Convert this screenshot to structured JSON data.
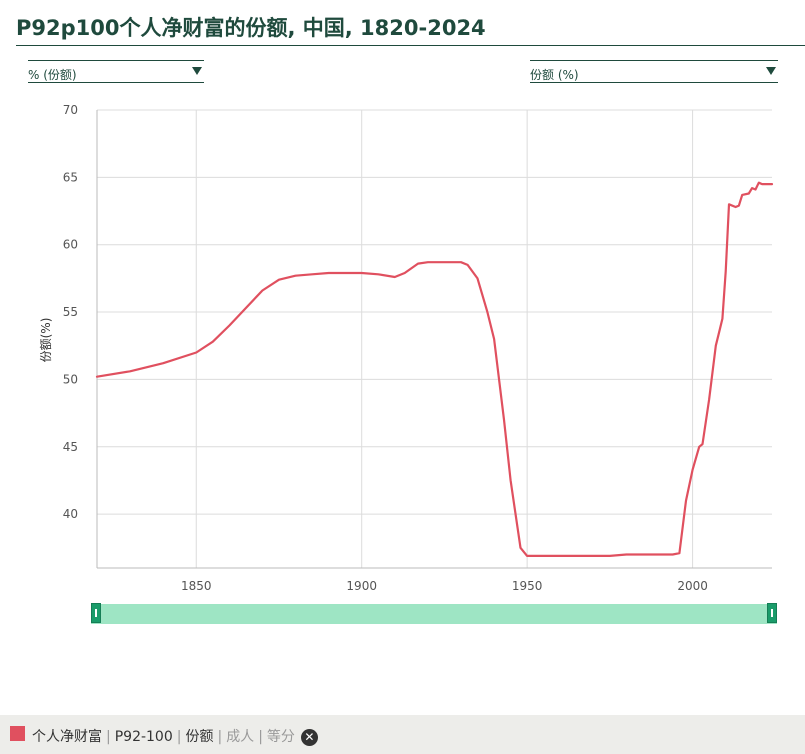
{
  "title": "P92p100个人净财富的份额, 中国, 1820-2024",
  "controls": {
    "left_select": "% (份额)",
    "right_select": "份额 (%)"
  },
  "chart_data": {
    "type": "line",
    "title": "P92p100个人净财富的份额, 中国, 1820-2024",
    "xlabel": "",
    "ylabel": "份额(%)",
    "xlim": [
      1820,
      2024
    ],
    "ylim": [
      36,
      70
    ],
    "xticks": [
      1850,
      1900,
      1950,
      2000
    ],
    "yticks": [
      40,
      45,
      50,
      55,
      60,
      65,
      70
    ],
    "grid": true,
    "color": "#e0505f",
    "series": [
      {
        "x": [
          1820,
          1830,
          1840,
          1850,
          1855,
          1860,
          1865,
          1870,
          1875,
          1880,
          1885,
          1890,
          1895,
          1900,
          1905,
          1910,
          1913,
          1917,
          1920,
          1925,
          1930,
          1932,
          1935,
          1938,
          1940,
          1943,
          1945,
          1948,
          1950,
          1955,
          1960,
          1965,
          1970,
          1975,
          1980,
          1985,
          1990,
          1994,
          1996,
          1998,
          2000,
          2002,
          2003,
          2005,
          2007,
          2008,
          2009,
          2010,
          2011,
          2013,
          2014,
          2015,
          2017,
          2018,
          2019,
          2020,
          2021,
          2022,
          2024
        ],
        "y": [
          50.2,
          50.6,
          51.2,
          52.0,
          52.8,
          54.0,
          55.3,
          56.6,
          57.4,
          57.7,
          57.8,
          57.9,
          57.9,
          57.9,
          57.8,
          57.6,
          57.9,
          58.6,
          58.7,
          58.7,
          58.7,
          58.5,
          57.5,
          55.0,
          53.0,
          47.0,
          42.5,
          37.5,
          36.9,
          36.9,
          36.9,
          36.9,
          36.9,
          36.9,
          37.0,
          37.0,
          37.0,
          37.0,
          37.1,
          41.0,
          43.3,
          45.0,
          45.2,
          48.5,
          52.5,
          53.5,
          54.5,
          58.0,
          63.0,
          62.8,
          62.9,
          63.7,
          63.8,
          64.2,
          64.1,
          64.6,
          64.5,
          64.5,
          64.5
        ]
      }
    ]
  },
  "range_selector": {
    "start": 1820,
    "end": 2024
  },
  "legend": {
    "color": "#e0505f",
    "parts": [
      "个人净财富",
      "P92-100",
      "份额"
    ],
    "dim_parts": [
      "成人",
      "等分"
    ],
    "remove_icon": "close-icon"
  }
}
